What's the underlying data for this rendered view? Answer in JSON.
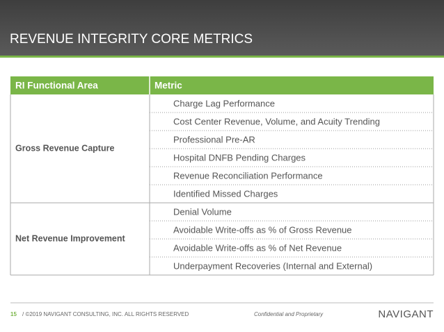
{
  "header": {
    "title": "REVENUE INTEGRITY CORE METRICS"
  },
  "table": {
    "columns": [
      "RI Functional Area",
      "Metric"
    ],
    "groups": [
      {
        "area": "Gross Revenue Capture",
        "metrics": [
          "Charge Lag Performance",
          "Cost Center Revenue, Volume, and Acuity Trending",
          "Professional Pre-AR",
          "Hospital DNFB Pending Charges",
          "Revenue Reconciliation Performance",
          "Identified Missed Charges"
        ]
      },
      {
        "area": "Net Revenue Improvement",
        "metrics": [
          "Denial Volume",
          "Avoidable Write-offs as % of Gross Revenue",
          "Avoidable Write-offs as % of Net Revenue",
          "Underpayment Recoveries (Internal and External)"
        ]
      }
    ]
  },
  "footer": {
    "page": "15",
    "copyright": "/ ©2019 NAVIGANT CONSULTING, INC. ALL RIGHTS RESERVED",
    "confidential": "Confidential and Proprietary",
    "logo": "NAVIGANT"
  }
}
